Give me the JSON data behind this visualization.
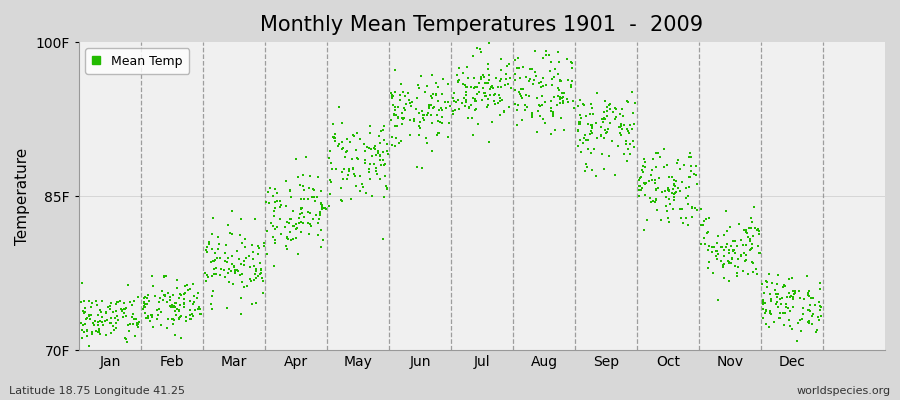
{
  "title": "Monthly Mean Temperatures 1901  -  2009",
  "ylabel": "Temperature",
  "xlabel_labels": [
    "Jan",
    "Feb",
    "Mar",
    "Apr",
    "May",
    "Jun",
    "Jul",
    "Aug",
    "Sep",
    "Oct",
    "Nov",
    "Dec"
  ],
  "yticks": [
    70,
    85,
    100
  ],
  "ytick_labels": [
    "70F",
    "85F",
    "100F"
  ],
  "ylim": [
    70,
    100
  ],
  "dot_color": "#22bb00",
  "plot_bg_color": "#f0f0f0",
  "fig_bg_color": "#d8d8d8",
  "title_fontsize": 15,
  "legend_label": "Mean Temp",
  "footer_left": "Latitude 18.75 Longitude 41.25",
  "footer_right": "worldspecies.org",
  "monthly_means": [
    73.0,
    74.2,
    78.5,
    83.5,
    88.5,
    93.0,
    95.5,
    95.0,
    91.5,
    86.0,
    80.0,
    74.5
  ],
  "monthly_stds": [
    1.3,
    1.4,
    1.8,
    2.0,
    2.2,
    1.8,
    1.8,
    2.0,
    2.0,
    2.0,
    1.8,
    1.4
  ],
  "n_years": 109
}
